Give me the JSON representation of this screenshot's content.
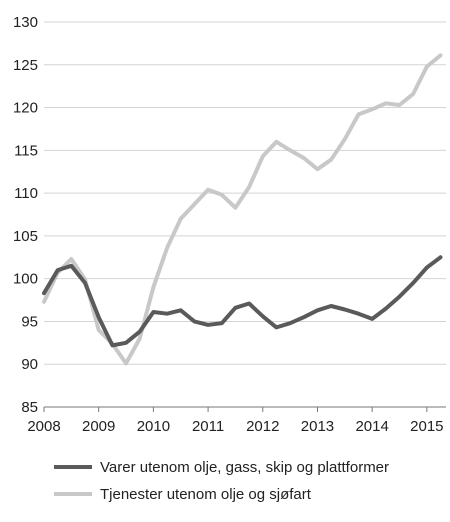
{
  "chart_data": {
    "type": "line",
    "title": "",
    "xlabel": "",
    "ylabel": "",
    "ylim": [
      85,
      130
    ],
    "yticks": [
      85,
      90,
      95,
      100,
      105,
      110,
      115,
      120,
      125,
      130
    ],
    "xlim": [
      2008,
      2015.35
    ],
    "xticks": [
      {
        "value": 2008,
        "label": "2008"
      },
      {
        "value": 2009,
        "label": "2009"
      },
      {
        "value": 2010,
        "label": "2010"
      },
      {
        "value": 2011,
        "label": "2011"
      },
      {
        "value": 2012,
        "label": "2012"
      },
      {
        "value": 2013,
        "label": "2013"
      },
      {
        "value": 2014,
        "label": "2014"
      },
      {
        "value": 2015,
        "label": "2015"
      }
    ],
    "grid": {
      "horizontal": true,
      "vertical": false
    },
    "legend_position": "bottom",
    "x": [
      2008.0,
      2008.25,
      2008.5,
      2008.75,
      2009.0,
      2009.25,
      2009.5,
      2009.75,
      2010.0,
      2010.25,
      2010.5,
      2010.75,
      2011.0,
      2011.25,
      2011.5,
      2011.75,
      2012.0,
      2012.25,
      2012.5,
      2012.75,
      2013.0,
      2013.25,
      2013.5,
      2013.75,
      2014.0,
      2014.25,
      2014.5,
      2014.75,
      2015.0,
      2015.25
    ],
    "series": [
      {
        "name": "Varer utenom olje, gass, skip og plattformer",
        "color": "#5a5a5a",
        "values": [
          98.3,
          101.0,
          101.5,
          99.5,
          95.5,
          92.2,
          92.5,
          93.8,
          96.1,
          95.9,
          96.3,
          95.0,
          94.6,
          94.8,
          96.6,
          97.1,
          95.6,
          94.3,
          94.8,
          95.5,
          96.3,
          96.8,
          96.4,
          95.9,
          95.3,
          96.5,
          97.9,
          99.5,
          101.3,
          102.5
        ]
      },
      {
        "name": "Tjenester utenom olje og sjøfart",
        "color": "#c8c8c8",
        "values": [
          97.3,
          100.7,
          102.3,
          99.9,
          94.0,
          92.4,
          90.1,
          93.0,
          99.0,
          103.6,
          107.0,
          108.7,
          110.4,
          109.8,
          108.3,
          110.7,
          114.3,
          116.0,
          115.0,
          114.1,
          112.8,
          113.9,
          116.3,
          119.2,
          119.8,
          120.5,
          120.3,
          121.6,
          124.8,
          126.1
        ]
      }
    ]
  }
}
